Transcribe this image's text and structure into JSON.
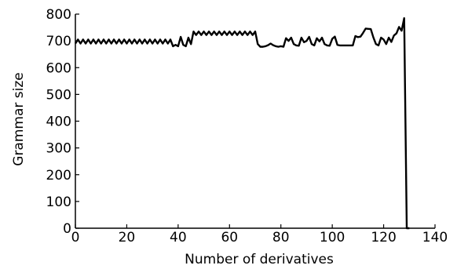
{
  "chart_data": {
    "type": "line",
    "title": "",
    "xlabel": "Number of derivatives",
    "ylabel": "Grammar size",
    "xlim": [
      0,
      140
    ],
    "ylim": [
      0,
      800
    ],
    "xticks": [
      0,
      20,
      40,
      60,
      80,
      100,
      120,
      140
    ],
    "yticks": [
      0,
      100,
      200,
      300,
      400,
      500,
      600,
      700,
      800
    ],
    "xtick_labels": [
      "0",
      "20",
      "40",
      "60",
      "80",
      "100",
      "120",
      "140"
    ],
    "ytick_labels": [
      "0",
      "100",
      "200",
      "300",
      "400",
      "500",
      "600",
      "700",
      "800"
    ],
    "grid": false,
    "line_color": "#000000",
    "series": [
      {
        "x": [
          0,
          1,
          2,
          3,
          4,
          5,
          6,
          7,
          8,
          9,
          10,
          11,
          12,
          13,
          14,
          15,
          16,
          17,
          18,
          19,
          20,
          21,
          22,
          23,
          24,
          25,
          26,
          27,
          28,
          29,
          30,
          31,
          32,
          33,
          34,
          35,
          36,
          37,
          38,
          39,
          40,
          41,
          42,
          43,
          44,
          45,
          46,
          47,
          48,
          49,
          50,
          51,
          52,
          53,
          54,
          55,
          56,
          57,
          58,
          59,
          60,
          61,
          62,
          63,
          64,
          65,
          66,
          67,
          68,
          69,
          70,
          71,
          72,
          73,
          74,
          75,
          76,
          77,
          78,
          79,
          80,
          81,
          82,
          83,
          84,
          85,
          86,
          87,
          88,
          89,
          90,
          91,
          92,
          93,
          94,
          95,
          96,
          97,
          98,
          99,
          100,
          101,
          102,
          103,
          104,
          105,
          106,
          107,
          108,
          109,
          110,
          111,
          112,
          113,
          114,
          115,
          116,
          117,
          118,
          119,
          120,
          121,
          122,
          123,
          124,
          125,
          126,
          127,
          128,
          129,
          130
        ],
        "y": [
          690,
          705,
          690,
          705,
          690,
          705,
          690,
          705,
          690,
          705,
          690,
          705,
          690,
          705,
          690,
          705,
          690,
          705,
          690,
          705,
          690,
          705,
          690,
          705,
          690,
          705,
          690,
          705,
          690,
          705,
          690,
          705,
          690,
          705,
          690,
          705,
          690,
          705,
          680,
          685,
          680,
          715,
          685,
          680,
          712,
          688,
          735,
          722,
          735,
          722,
          735,
          722,
          735,
          722,
          735,
          722,
          735,
          722,
          735,
          722,
          735,
          722,
          735,
          722,
          735,
          722,
          735,
          722,
          735,
          722,
          735,
          688,
          678,
          678,
          680,
          684,
          690,
          684,
          680,
          678,
          680,
          678,
          710,
          700,
          712,
          688,
          683,
          682,
          712,
          695,
          700,
          715,
          688,
          683,
          710,
          698,
          712,
          688,
          683,
          682,
          708,
          716,
          685,
          683,
          683,
          683,
          683,
          683,
          683,
          718,
          714,
          716,
          730,
          746,
          745,
          744,
          713,
          688,
          683,
          712,
          705,
          688,
          712,
          696,
          720,
          728,
          752,
          738,
          785,
          0,
          0
        ]
      }
    ]
  }
}
